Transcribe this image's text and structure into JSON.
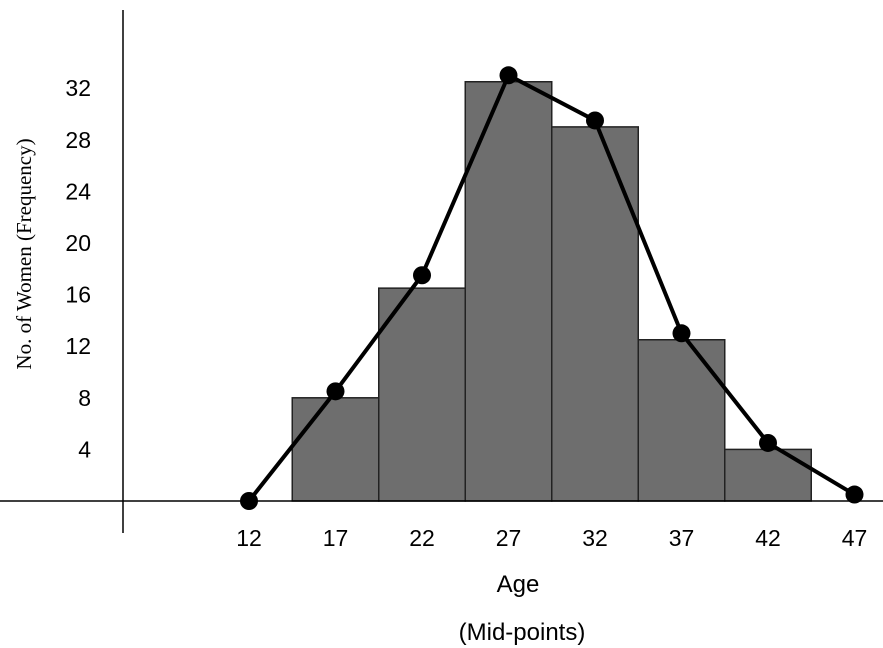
{
  "chart_data": {
    "type": "bar",
    "title": "",
    "xlabel": "Age",
    "xlabel_sub": "(Mid-points)",
    "ylabel": "No. of Women (Frequency)",
    "categories": [
      "17",
      "22",
      "27",
      "32",
      "37",
      "42"
    ],
    "series": [
      {
        "kind": "histogram",
        "values": [
          8,
          16.5,
          32.5,
          29,
          12.5,
          4
        ]
      },
      {
        "kind": "frequency-polygon",
        "x": [
          12,
          17,
          22,
          27,
          32,
          37,
          42,
          47
        ],
        "values": [
          0,
          8.5,
          17.5,
          33,
          29.5,
          13,
          4.5,
          0.5
        ]
      }
    ],
    "class_width": 5,
    "x_ticks": [
      "12",
      "17",
      "22",
      "27",
      "32",
      "37",
      "42",
      "47"
    ],
    "y_ticks": [
      "4",
      "8",
      "12",
      "16",
      "20",
      "24",
      "28",
      "32"
    ],
    "ylim": [
      0,
      36
    ],
    "grid": false,
    "colors": {
      "bar_fill": "#6e6e6e",
      "bar_stroke": "#222222",
      "line": "#000000",
      "axis": "#000000"
    }
  }
}
